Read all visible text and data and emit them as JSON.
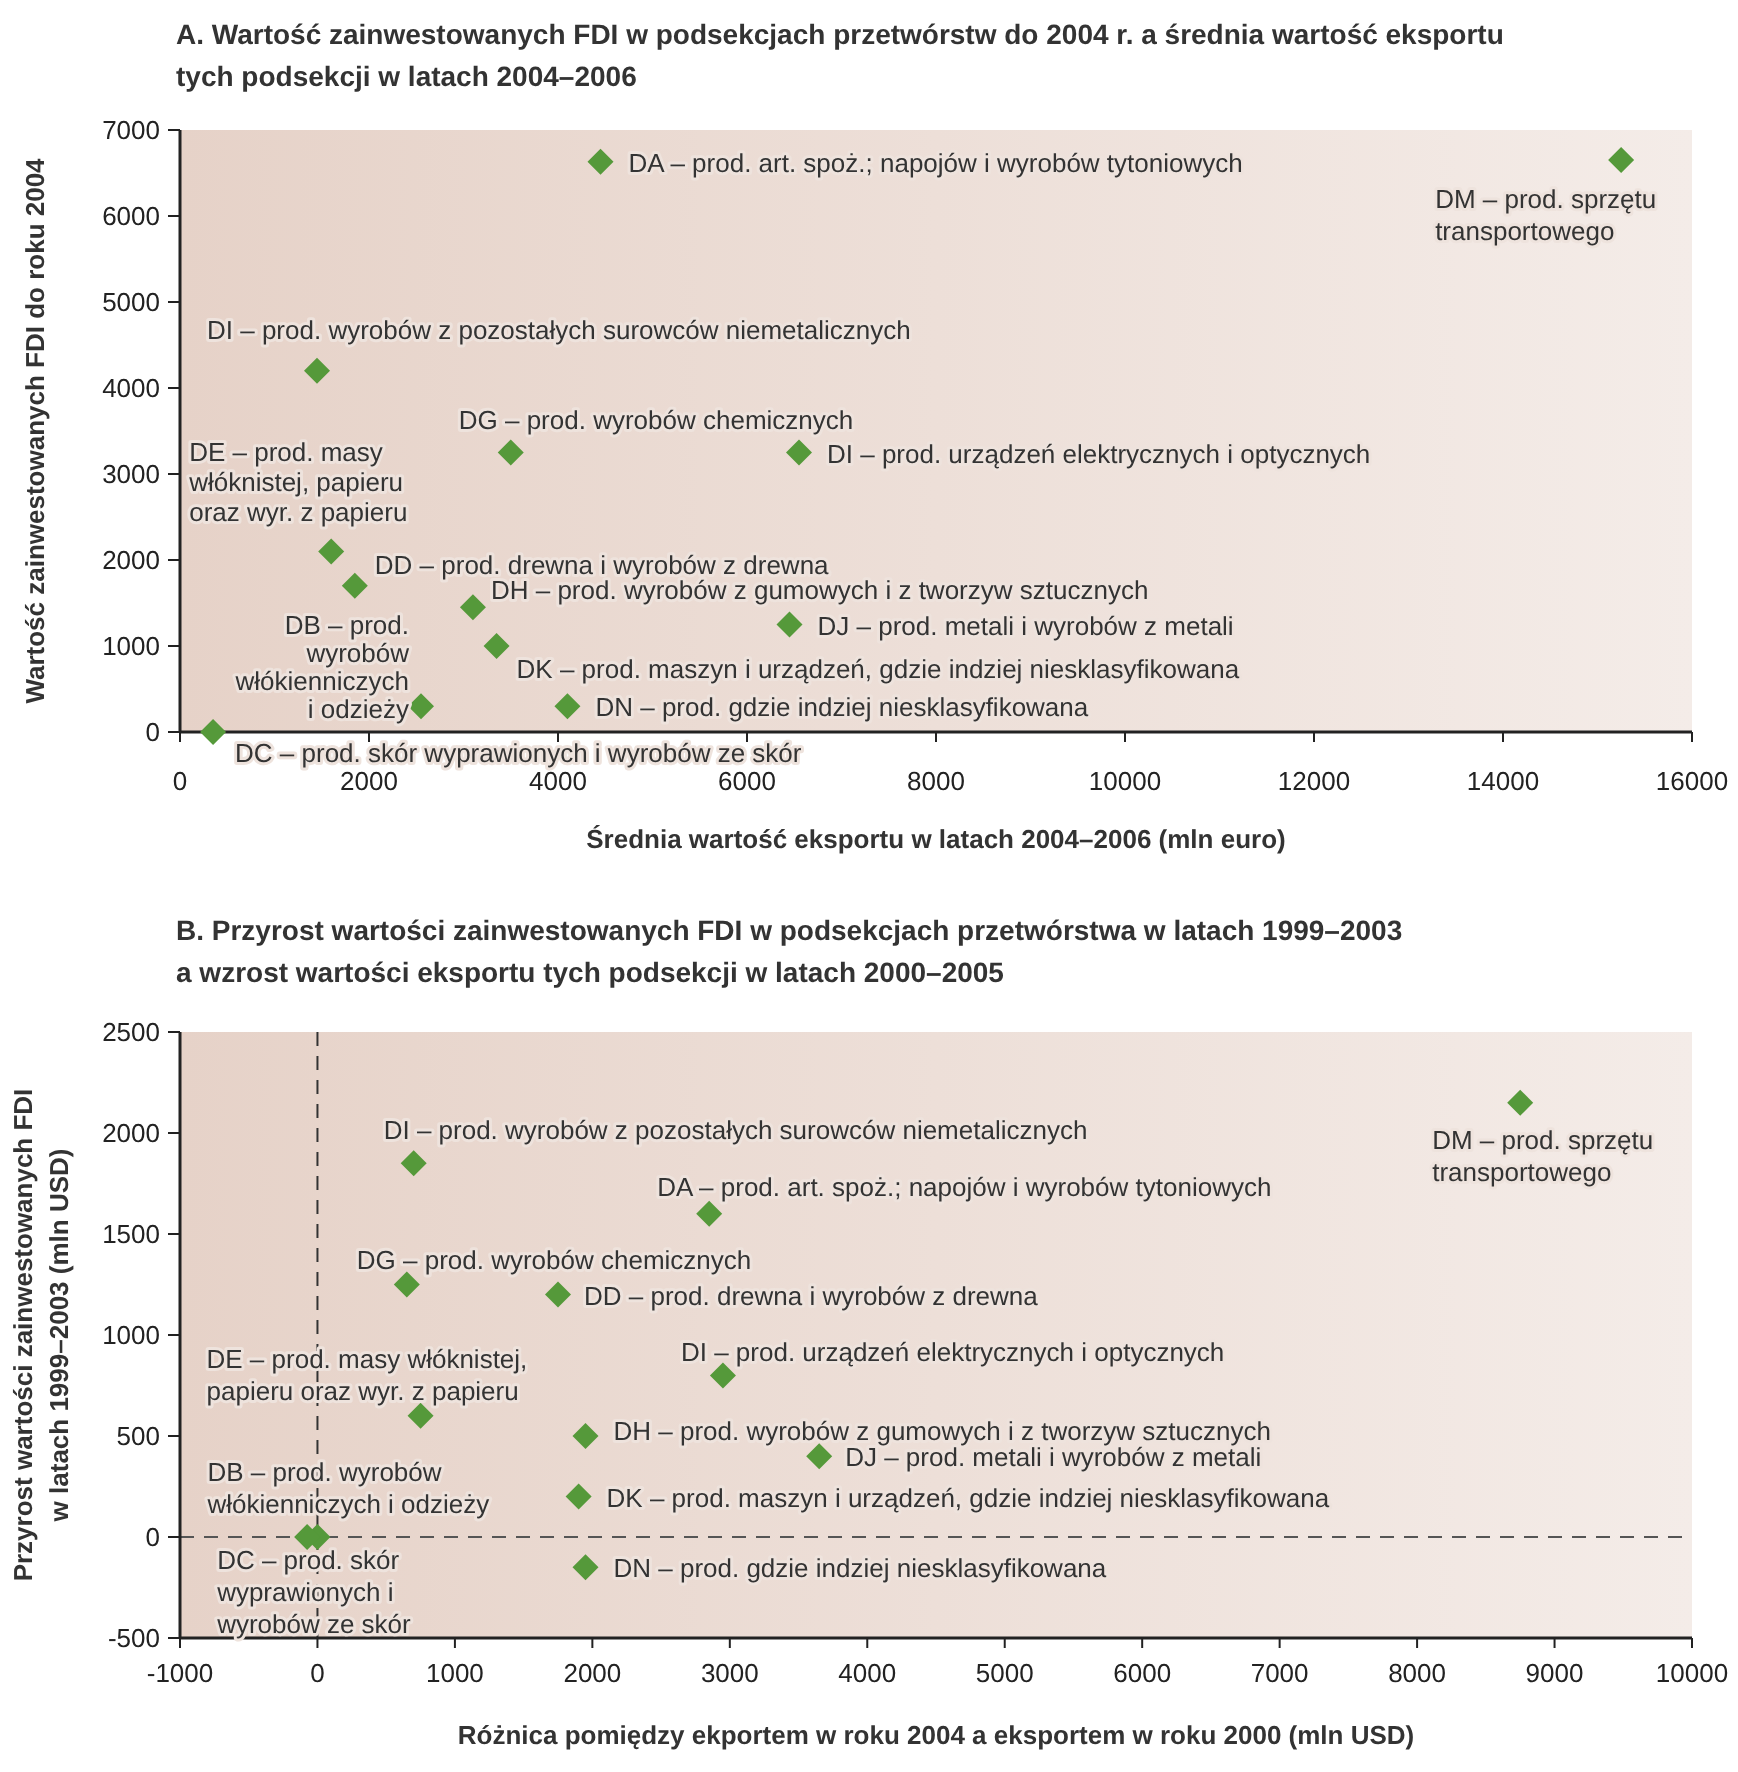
{
  "chart_data": [
    {
      "type": "scatter",
      "title": "A. Wartość zainwestowanych FDI w podsekcjach przetwórstw do 2004 r. a średnia wartość eksportu\ntych podsekcji w latach 2004–2006",
      "xlabel": "Średnia wartość eksportu w latach 2004–2006 (mln euro)",
      "ylabel": "Wartość zainwestowanych FDI do roku 2004",
      "xlim": [
        0,
        16000
      ],
      "ylim": [
        0,
        7000
      ],
      "xticks": [
        0,
        2000,
        4000,
        6000,
        8000,
        10000,
        12000,
        14000,
        16000
      ],
      "yticks": [
        0,
        1000,
        2000,
        3000,
        4000,
        5000,
        6000,
        7000
      ],
      "marker": "diamond",
      "series": [
        {
          "name": "DA – prod. art. spoż.; napojów i wyrobów tytoniowych",
          "color": "#55993a",
          "x": [
            4450
          ],
          "values": [
            6630
          ]
        },
        {
          "name": "DM – prod. sprzętu transportowego",
          "color": "#55993a",
          "x": [
            15250
          ],
          "values": [
            6650
          ]
        },
        {
          "name": "DI – prod. wyrobów z pozostałych surowców niemetalicznych",
          "color": "#55993a",
          "x": [
            1450
          ],
          "values": [
            4200
          ]
        },
        {
          "name": "DE – prod. masy włóknistej, papieru oraz wyr. z papieru",
          "color": "#55993a",
          "x": [
            1600
          ],
          "values": [
            2100
          ]
        },
        {
          "name": "DG – prod. wyrobów chemicznych",
          "color": "#55993a",
          "x": [
            3500
          ],
          "values": [
            3250
          ]
        },
        {
          "name": "DI – prod. urządzeń elektrycznych i optycznych",
          "color": "#55993a",
          "x": [
            6550
          ],
          "values": [
            3250
          ]
        },
        {
          "name": "DB – prod. wyrobów włókienniczych i odzieży",
          "color": "#55993a",
          "x": [
            2550
          ],
          "values": [
            300
          ]
        },
        {
          "name": "DD – prod. drewna i wyrobów z drewna",
          "color": "#55993a",
          "x": [
            1850
          ],
          "values": [
            1700
          ]
        },
        {
          "name": "DH – prod. wyrobów z gumowych i z tworzyw sztucznych",
          "color": "#55993a",
          "x": [
            3100
          ],
          "values": [
            1450
          ]
        },
        {
          "name": "DJ – prod. metali i wyrobów z metali",
          "color": "#55993a",
          "x": [
            6450
          ],
          "values": [
            1250
          ]
        },
        {
          "name": "DK – prod. maszyn i urządzeń, gdzie indziej niesklasyfikowana",
          "color": "#55993a",
          "x": [
            3350
          ],
          "values": [
            1000
          ]
        },
        {
          "name": "DC – prod. skór wyprawionych i wyrobów ze skór",
          "color": "#55993a",
          "x": [
            350
          ],
          "values": [
            0
          ]
        },
        {
          "name": "DN – prod. gdzie indziej niesklasyfikowana",
          "color": "#55993a",
          "x": [
            4100
          ],
          "values": [
            300
          ]
        }
      ]
    },
    {
      "type": "scatter",
      "title": "B. Przyrost wartości zainwestowanych FDI w podsekcjach przetwórstwa w latach 1999–2003\na wzrost wartości eksportu tych podsekcji w latach 2000–2005",
      "xlabel": "Różnica pomiędzy ekportem w roku 2004 a eksportem w roku 2000 (mln USD)",
      "ylabel": "Przyrost wartości zainwestowanych FDI\nw latach 1999–2003 (mln USD)",
      "xlim": [
        -1000,
        10000
      ],
      "ylim": [
        -500,
        2500
      ],
      "xticks": [
        -1000,
        0,
        1000,
        2000,
        3000,
        4000,
        5000,
        6000,
        7000,
        8000,
        9000,
        10000
      ],
      "yticks": [
        -500,
        0,
        500,
        1000,
        1500,
        2000,
        2500
      ],
      "marker": "diamond",
      "ref_lines": [
        {
          "axis": "x",
          "value": 0,
          "line_style": "dashed",
          "color": "#333333"
        },
        {
          "axis": "y",
          "value": 0,
          "line_style": "dashed",
          "color": "#555555"
        }
      ],
      "series": [
        {
          "name": "DA – prod. art. spoż.; napojów i wyrobów tytoniowych",
          "color": "#55993a",
          "x": [
            2850
          ],
          "values": [
            1600
          ]
        },
        {
          "name": "DM – prod. sprzętu transportowego",
          "color": "#55993a",
          "x": [
            8750
          ],
          "values": [
            2150
          ]
        },
        {
          "name": "DI – prod. wyrobów z pozostałych surowców niemetalicznych",
          "color": "#55993a",
          "x": [
            700
          ],
          "values": [
            1850
          ]
        },
        {
          "name": "DE – prod. masy włóknistej, papieru oraz wyr. z papieru",
          "color": "#55993a",
          "x": [
            750
          ],
          "values": [
            600
          ]
        },
        {
          "name": "DG – prod. wyrobów chemicznych",
          "color": "#55993a",
          "x": [
            650
          ],
          "values": [
            1250
          ]
        },
        {
          "name": "DI – prod. urządzeń elektrycznych i optycznych",
          "color": "#55993a",
          "x": [
            2950
          ],
          "values": [
            800
          ]
        },
        {
          "name": "DB – prod. wyrobów włókienniczych i odzieży",
          "color": "#55993a",
          "x": [
            0
          ],
          "values": [
            0
          ]
        },
        {
          "name": "DD – prod. drewna i wyrobów z drewna",
          "color": "#55993a",
          "x": [
            1750
          ],
          "values": [
            1200
          ]
        },
        {
          "name": "DH – prod. wyrobów z gumowych i z tworzyw sztucznych",
          "color": "#55993a",
          "x": [
            1950
          ],
          "values": [
            500
          ]
        },
        {
          "name": "DJ – prod. metali i wyrobów z metali",
          "color": "#55993a",
          "x": [
            3650
          ],
          "values": [
            400
          ]
        },
        {
          "name": "DK – prod. maszyn i urządzeń, gdzie indziej niesklasyfikowana",
          "color": "#55993a",
          "x": [
            1900
          ],
          "values": [
            200
          ]
        },
        {
          "name": "DC – prod. skór wyprawionych i wyrobów ze skór",
          "color": "#55993a",
          "x": [
            -75
          ],
          "values": [
            0
          ]
        },
        {
          "name": "DN – prod. gdzie indziej niesklasyfikowana",
          "color": "#55993a",
          "x": [
            1950
          ],
          "values": [
            -150
          ]
        }
      ]
    }
  ]
}
